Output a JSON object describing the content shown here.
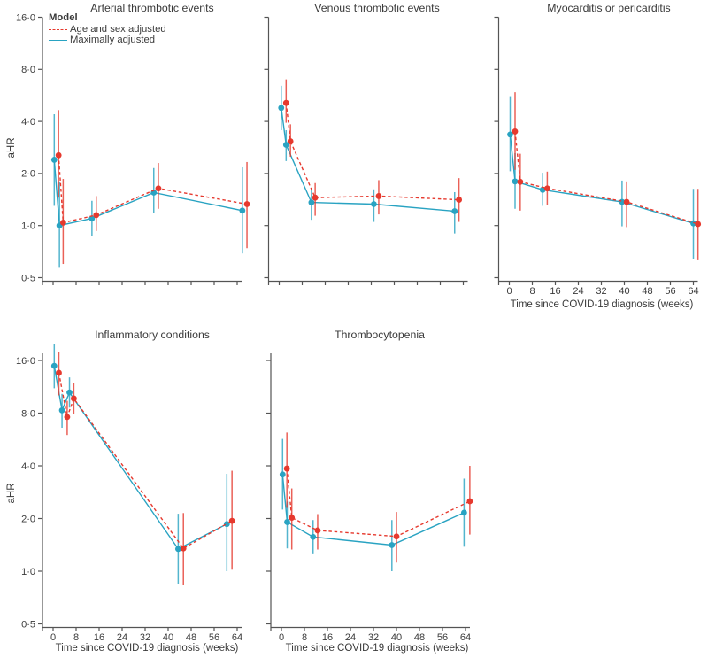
{
  "figure": {
    "background": "#ffffff",
    "y_axis_label": "aHR",
    "x_axis_label": "Time since COVID-19 diagnosis (weeks)",
    "axis_color": "#545454",
    "text_color": "#3a3a3a",
    "series_colors": {
      "age_and_sex_adjusted": "#e6392e",
      "maximally_adjusted": "#29a3c2"
    },
    "y_scale": "log2",
    "y_ticks": [
      {
        "value": 16,
        "label": "16·0"
      },
      {
        "value": 8,
        "label": "8·0"
      },
      {
        "value": 4,
        "label": "4·0"
      },
      {
        "value": 2,
        "label": "2·0"
      },
      {
        "value": 1,
        "label": "1·0"
      },
      {
        "value": 0.5,
        "label": "0·5"
      }
    ],
    "x_ticks": [
      {
        "value": 0,
        "label": "0"
      },
      {
        "value": 8,
        "label": "8"
      },
      {
        "value": 16,
        "label": "16"
      },
      {
        "value": 24,
        "label": "24"
      },
      {
        "value": 32,
        "label": "32"
      },
      {
        "value": 40,
        "label": "40"
      },
      {
        "value": 48,
        "label": "48"
      },
      {
        "value": 56,
        "label": "56"
      },
      {
        "value": 64,
        "label": "64"
      }
    ],
    "legend": {
      "title": "Model",
      "entries": [
        {
          "label": "Age and sex adjusted",
          "style": "dashed",
          "color": "#e6392e"
        },
        {
          "label": "Maximally adjusted",
          "style": "solid",
          "color": "#29a3c2"
        }
      ]
    }
  },
  "chart_data": [
    {
      "type": "line",
      "title": "Arterial thrombotic events",
      "xlabel": "Time since COVID-19 diagnosis (weeks)",
      "ylabel": "aHR",
      "x_range": [
        0,
        64
      ],
      "y_range": [
        0.5,
        16
      ],
      "y_scale": "log2",
      "show_y_tick_labels": true,
      "show_x_tick_labels": false,
      "show_x_axis_title": false,
      "show_legend": true,
      "series": [
        {
          "name": "Age and sex adjusted",
          "color": "#e6392e",
          "line_style": "dashed",
          "points": [
            {
              "week": 1.9,
              "ahr": 2.55,
              "ci_low": 1.45,
              "ci_high": 4.65
            },
            {
              "week": 3.5,
              "ahr": 1.04,
              "ci_low": 0.6,
              "ci_high": 1.86
            },
            {
              "week": 15.0,
              "ahr": 1.15,
              "ci_low": 0.93,
              "ci_high": 1.48
            },
            {
              "week": 36.6,
              "ahr": 1.64,
              "ci_low": 1.25,
              "ci_high": 2.3
            },
            {
              "week": 67.4,
              "ahr": 1.33,
              "ci_low": 0.74,
              "ci_high": 2.33
            }
          ]
        },
        {
          "name": "Maximally adjusted",
          "color": "#29a3c2",
          "line_style": "solid",
          "points": [
            {
              "week": 0.4,
              "ahr": 2.4,
              "ci_low": 1.3,
              "ci_high": 4.4
            },
            {
              "week": 2.2,
              "ahr": 1.0,
              "ci_low": 0.57,
              "ci_high": 1.8
            },
            {
              "week": 13.5,
              "ahr": 1.1,
              "ci_low": 0.87,
              "ci_high": 1.39
            },
            {
              "week": 35.0,
              "ahr": 1.55,
              "ci_low": 1.18,
              "ci_high": 2.15
            },
            {
              "week": 65.8,
              "ahr": 1.22,
              "ci_low": 0.69,
              "ci_high": 2.17
            }
          ]
        }
      ]
    },
    {
      "type": "line",
      "title": "Venous thrombotic events",
      "xlabel": "Time since COVID-19 diagnosis (weeks)",
      "ylabel": "aHR",
      "x_range": [
        0,
        64
      ],
      "y_range": [
        0.5,
        16
      ],
      "y_scale": "log2",
      "show_y_tick_labels": false,
      "show_x_tick_labels": false,
      "show_x_axis_title": false,
      "show_legend": false,
      "series": [
        {
          "name": "Age and sex adjusted",
          "color": "#e6392e",
          "line_style": "dashed",
          "points": [
            {
              "week": 2.4,
              "ahr": 5.12,
              "ci_low": 3.93,
              "ci_high": 7.0
            },
            {
              "week": 3.9,
              "ahr": 3.07,
              "ci_low": 2.5,
              "ci_high": 3.85
            },
            {
              "week": 12.5,
              "ahr": 1.45,
              "ci_low": 1.14,
              "ci_high": 1.76
            },
            {
              "week": 34.6,
              "ahr": 1.48,
              "ci_low": 1.16,
              "ci_high": 1.83
            },
            {
              "week": 62.5,
              "ahr": 1.41,
              "ci_low": 1.05,
              "ci_high": 1.88
            }
          ]
        },
        {
          "name": "Maximally adjusted",
          "color": "#29a3c2",
          "line_style": "solid",
          "points": [
            {
              "week": 0.7,
              "ahr": 4.79,
              "ci_low": 3.56,
              "ci_high": 6.43
            },
            {
              "week": 2.4,
              "ahr": 2.93,
              "ci_low": 2.36,
              "ci_high": 3.56
            },
            {
              "week": 11.2,
              "ahr": 1.36,
              "ci_low": 1.08,
              "ci_high": 1.64
            },
            {
              "week": 32.9,
              "ahr": 1.33,
              "ci_low": 1.05,
              "ci_high": 1.62
            },
            {
              "week": 61.0,
              "ahr": 1.21,
              "ci_low": 0.9,
              "ci_high": 1.56
            }
          ]
        }
      ]
    },
    {
      "type": "line",
      "title": "Myocarditis or pericarditis",
      "xlabel": "Time since COVID-19 diagnosis (weeks)",
      "ylabel": "aHR",
      "x_range": [
        0,
        64
      ],
      "y_range": [
        0.5,
        16
      ],
      "y_scale": "log2",
      "show_y_tick_labels": false,
      "show_x_tick_labels": true,
      "show_x_axis_title": true,
      "show_legend": false,
      "series": [
        {
          "name": "Age and sex adjusted",
          "color": "#e6392e",
          "line_style": "dashed",
          "points": [
            {
              "week": 2.0,
              "ahr": 3.5,
              "ci_low": 2.1,
              "ci_high": 5.9
            },
            {
              "week": 3.8,
              "ahr": 1.79,
              "ci_low": 1.22,
              "ci_high": 2.6
            },
            {
              "week": 13.2,
              "ahr": 1.64,
              "ci_low": 1.32,
              "ci_high": 2.05
            },
            {
              "week": 40.8,
              "ahr": 1.37,
              "ci_low": 0.98,
              "ci_high": 1.8
            },
            {
              "week": 65.6,
              "ahr": 1.02,
              "ci_low": 0.63,
              "ci_high": 1.63
            }
          ]
        },
        {
          "name": "Maximally adjusted",
          "color": "#29a3c2",
          "line_style": "solid",
          "points": [
            {
              "week": 0.3,
              "ahr": 3.36,
              "ci_low": 2.06,
              "ci_high": 5.6
            },
            {
              "week": 2.0,
              "ahr": 1.8,
              "ci_low": 1.25,
              "ci_high": 2.62
            },
            {
              "week": 11.6,
              "ahr": 1.61,
              "ci_low": 1.3,
              "ci_high": 2.02
            },
            {
              "week": 39.2,
              "ahr": 1.37,
              "ci_low": 0.99,
              "ci_high": 1.82
            },
            {
              "week": 64.0,
              "ahr": 1.03,
              "ci_low": 0.64,
              "ci_high": 1.63
            }
          ]
        }
      ]
    },
    {
      "type": "line",
      "title": "Inflammatory conditions",
      "xlabel": "Time since COVID-19 diagnosis (weeks)",
      "ylabel": "aHR",
      "x_range": [
        0,
        64
      ],
      "y_range": [
        0.5,
        16
      ],
      "y_scale": "log2",
      "show_y_tick_labels": true,
      "show_x_tick_labels": true,
      "show_x_axis_title": true,
      "show_legend": false,
      "series": [
        {
          "name": "Age and sex adjusted",
          "color": "#e6392e",
          "line_style": "dashed",
          "points": [
            {
              "week": 2.0,
              "ahr": 13.6,
              "ci_low": 10.1,
              "ci_high": 17.9
            },
            {
              "week": 4.9,
              "ahr": 7.6,
              "ci_low": 6.0,
              "ci_high": 9.4
            },
            {
              "week": 7.2,
              "ahr": 9.7,
              "ci_low": 7.9,
              "ci_high": 11.9
            },
            {
              "week": 45.3,
              "ahr": 1.35,
              "ci_low": 0.83,
              "ci_high": 2.15
            },
            {
              "week": 62.2,
              "ahr": 1.94,
              "ci_low": 1.02,
              "ci_high": 3.75
            }
          ]
        },
        {
          "name": "Maximally adjusted",
          "color": "#29a3c2",
          "line_style": "solid",
          "points": [
            {
              "week": 0.4,
              "ahr": 14.9,
              "ci_low": 11.1,
              "ci_high": 19.9
            },
            {
              "week": 3.1,
              "ahr": 8.3,
              "ci_low": 6.6,
              "ci_high": 10.3
            },
            {
              "week": 5.7,
              "ahr": 10.5,
              "ci_low": 8.6,
              "ci_high": 12.8
            },
            {
              "week": 43.5,
              "ahr": 1.34,
              "ci_low": 0.84,
              "ci_high": 2.13
            },
            {
              "week": 60.4,
              "ahr": 1.86,
              "ci_low": 1.0,
              "ci_high": 3.6
            }
          ]
        }
      ]
    },
    {
      "type": "line",
      "title": "Thrombocytopenia",
      "xlabel": "Time since COVID-19 diagnosis (weeks)",
      "ylabel": "aHR",
      "x_range": [
        0,
        64
      ],
      "y_range": [
        0.5,
        16
      ],
      "y_scale": "log2",
      "show_y_tick_labels": false,
      "show_x_tick_labels": true,
      "show_x_axis_title": true,
      "show_legend": false,
      "series": [
        {
          "name": "Age and sex adjusted",
          "color": "#e6392e",
          "line_style": "dashed",
          "points": [
            {
              "week": 1.9,
              "ahr": 3.86,
              "ci_low": 2.3,
              "ci_high": 6.2
            },
            {
              "week": 3.6,
              "ahr": 2.02,
              "ci_low": 1.33,
              "ci_high": 2.97
            },
            {
              "week": 12.6,
              "ahr": 1.71,
              "ci_low": 1.33,
              "ci_high": 2.12
            },
            {
              "week": 40.0,
              "ahr": 1.58,
              "ci_low": 1.12,
              "ci_high": 2.18
            },
            {
              "week": 65.5,
              "ahr": 2.51,
              "ci_low": 1.62,
              "ci_high": 4.0
            }
          ]
        },
        {
          "name": "Maximally adjusted",
          "color": "#29a3c2",
          "line_style": "solid",
          "points": [
            {
              "week": 0.4,
              "ahr": 3.57,
              "ci_low": 2.25,
              "ci_high": 5.7
            },
            {
              "week": 2.0,
              "ahr": 1.91,
              "ci_low": 1.35,
              "ci_high": 2.5
            },
            {
              "week": 11.0,
              "ahr": 1.57,
              "ci_low": 1.25,
              "ci_high": 1.96
            },
            {
              "week": 38.4,
              "ahr": 1.41,
              "ci_low": 1.0,
              "ci_high": 1.96
            },
            {
              "week": 63.5,
              "ahr": 2.16,
              "ci_low": 1.38,
              "ci_high": 3.38
            }
          ]
        }
      ]
    }
  ]
}
